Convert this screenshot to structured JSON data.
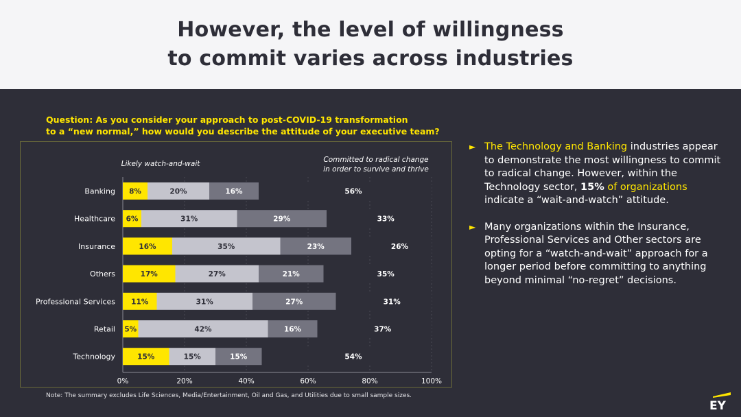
{
  "header": {
    "title_line1": "However, the level of willingness",
    "title_line2": "to commit varies across industries"
  },
  "question": {
    "line1": "Question: As you consider your approach to post-COVID-19 transformation",
    "line2": "to a “new normal,” how would you describe the attitude of your executive team?"
  },
  "note": "Note: The summary excludes Life Sciences, Media/Entertainment, Oil and Gas, and Utilities due to small sample sizes.",
  "bullets": [
    {
      "marker": "►",
      "hl1": "The Technology and Banking",
      "t1": " industries appear to demonstrate the most willingness to commit to radical change. However, within the Technology sector, ",
      "bold": "15%",
      "hl2": " of organizations",
      "t2": " indicate a “wait-and-watch” attitude."
    },
    {
      "marker": "►",
      "text": "Many organizations within the Insurance, Professional Services and Other sectors are opting for a “watch-and-wait” approach for a longer period before committing to anything beyond minimal “no-regret” decisions."
    }
  ],
  "logo": {
    "text": "EY",
    "color": "#ffe600"
  },
  "chart_data": {
    "type": "bar",
    "orientation": "horizontal",
    "stacked": true,
    "categories": [
      "Banking",
      "Healthcare",
      "Insurance",
      "Others",
      "Professional Services",
      "Retail",
      "Technology"
    ],
    "series": [
      {
        "values": [
          8,
          6,
          16,
          17,
          11,
          5,
          15
        ],
        "color": "#ffe600"
      },
      {
        "values": [
          20,
          31,
          35,
          27,
          31,
          42,
          15
        ],
        "color": "#c4c4cd"
      },
      {
        "values": [
          16,
          29,
          23,
          21,
          27,
          16,
          15
        ],
        "color": "#747480"
      },
      {
        "values": [
          56,
          33,
          26,
          35,
          31,
          37,
          54
        ],
        "color": "#2e2e38"
      }
    ],
    "value_labels": [
      [
        "8%",
        "20%",
        "16%",
        "56%"
      ],
      [
        "6%",
        "31%",
        "29%",
        "33%"
      ],
      [
        "16%",
        "35%",
        "23%",
        "26%"
      ],
      [
        "17%",
        "27%",
        "21%",
        "35%"
      ],
      [
        "11%",
        "31%",
        "27%",
        "31%"
      ],
      [
        "5%",
        "42%",
        "16%",
        "37%"
      ],
      [
        "15%",
        "15%",
        "15%",
        "54%"
      ]
    ],
    "annotations": {
      "left": "Likely watch-and-wait",
      "right_line1": "Committed to radical change",
      "right_line2": "in order to survive and thrive"
    },
    "xticks": [
      "0%",
      "20%",
      "40%",
      "60%",
      "80%",
      "100%"
    ],
    "xlim": [
      0,
      100
    ],
    "grid": false
  }
}
